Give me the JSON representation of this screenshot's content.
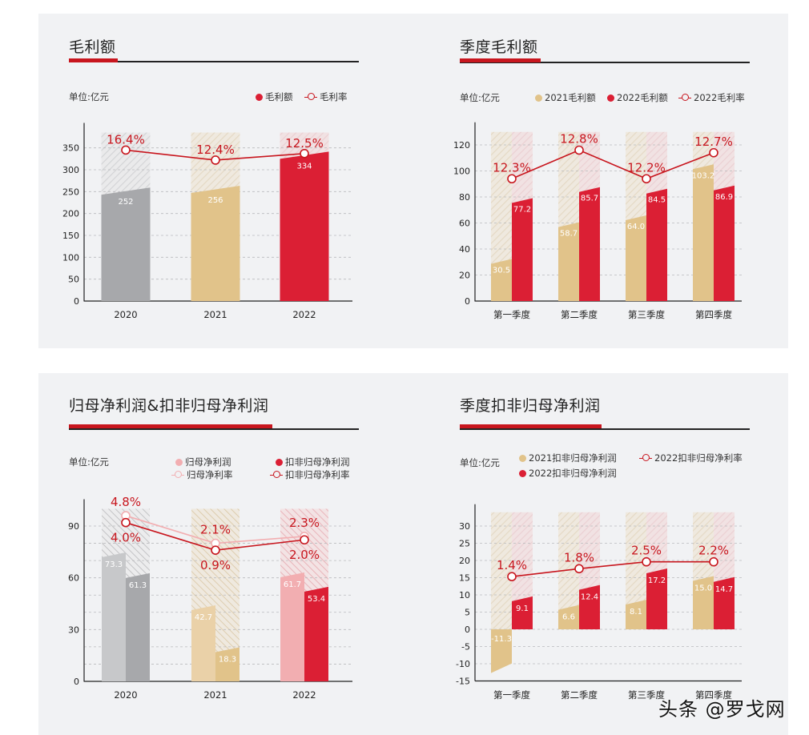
{
  "colors": {
    "red": "#db1f34",
    "gold": "#e1c38a",
    "gray": "#a7a8ab",
    "light_gray": "#c7c8ca",
    "pink": "#f2aeb1",
    "light_gold": "#ead1a8",
    "line_red": "#c8161e",
    "line_pink": "#f2aeb1",
    "panel_bg": "#f1f2f4"
  },
  "panels": {
    "gross_profit": {
      "title": "毛利额",
      "unit": "单位:亿元",
      "legend": [
        "毛利额",
        "毛利率"
      ]
    },
    "quarterly_gross_profit": {
      "title": "季度毛利额",
      "unit": "单位:亿元",
      "legend": [
        "2021毛利额",
        "2022毛利额",
        "2022毛利率"
      ]
    },
    "net_profit": {
      "title": "归母净利润&扣非归母净利润",
      "unit": "单位:亿元",
      "legend": [
        "归母净利润",
        "扣非归母净利润",
        "归母净利率",
        "扣非归母净利率"
      ]
    },
    "quarterly_adjusted_net_profit": {
      "title": "季度扣非归母净利润",
      "unit": "单位:亿元",
      "legend": [
        "2021扣非归母净利润",
        "2022扣非归母净利率",
        "2022扣非归母净利润"
      ]
    }
  },
  "watermark": "头条 @罗戈网",
  "chart_data": [
    {
      "type": "bar",
      "title": "毛利额",
      "unit": "亿元",
      "categories": [
        "2020",
        "2021",
        "2022"
      ],
      "series": [
        {
          "name": "毛利额",
          "values": [
            252,
            256,
            334
          ],
          "labels": [
            "252",
            "256",
            "334"
          ],
          "colors": [
            "#a7a8ab",
            "#e1c38a",
            "#db1f34"
          ]
        }
      ],
      "line_series": [
        {
          "name": "毛利率",
          "values": [
            16.4,
            12.4,
            12.5
          ],
          "labels": [
            "16.4%",
            "12.4%",
            "12.5%"
          ],
          "plot_y": [
            345,
            322,
            337
          ]
        }
      ],
      "yticks": [
        0,
        50,
        100,
        150,
        200,
        250,
        300,
        350
      ],
      "ylim": [
        0,
        385
      ],
      "grid": true,
      "legend_position": "top-right"
    },
    {
      "type": "bar",
      "title": "季度毛利额",
      "unit": "亿元",
      "categories": [
        "第一季度",
        "第二季度",
        "第三季度",
        "第四季度"
      ],
      "series": [
        {
          "name": "2021毛利额",
          "values": [
            30.5,
            58.7,
            64.0,
            103.2
          ],
          "labels": [
            "30.5",
            "58.7",
            "64.0",
            "103.2"
          ],
          "color": "#e1c38a"
        },
        {
          "name": "2022毛利额",
          "values": [
            77.2,
            85.7,
            84.5,
            86.9
          ],
          "labels": [
            "77.2",
            "85.7",
            "84.5",
            "86.9"
          ],
          "color": "#db1f34"
        }
      ],
      "line_series": [
        {
          "name": "2022毛利率",
          "values": [
            12.3,
            12.8,
            12.2,
            12.7
          ],
          "labels": [
            "12.3%",
            "12.8%",
            "12.2%",
            "12.7%"
          ],
          "plot_y": [
            94,
            116,
            94,
            114
          ]
        }
      ],
      "yticks": [
        0,
        20,
        40,
        60,
        80,
        100,
        120
      ],
      "ylim": [
        0,
        130
      ],
      "grid": true,
      "legend_position": "top"
    },
    {
      "type": "bar",
      "title": "归母净利润&扣非归母净利润",
      "unit": "亿元",
      "categories": [
        "2020",
        "2021",
        "2022"
      ],
      "series": [
        {
          "name": "归母净利润",
          "values": [
            73.3,
            42.7,
            61.7
          ],
          "labels": [
            "73.3",
            "42.7",
            "61.7"
          ],
          "colors": [
            "#c7c8ca",
            "#ead1a8",
            "#f2aeb1"
          ]
        },
        {
          "name": "扣非归母净利润",
          "values": [
            61.3,
            18.3,
            53.4
          ],
          "labels": [
            "61.3",
            "18.3",
            "53.4"
          ],
          "colors": [
            "#a7a8ab",
            "#e1c38a",
            "#db1f34"
          ]
        }
      ],
      "line_series": [
        {
          "name": "归母净利率",
          "values": [
            4.8,
            2.1,
            2.3
          ],
          "labels": [
            "4.8%",
            "2.1%",
            "2.3%"
          ],
          "plot_y": [
            96,
            80,
            84
          ]
        },
        {
          "name": "扣非归母净利率",
          "values": [
            4.0,
            0.9,
            2.0
          ],
          "labels": [
            "4.0%",
            "0.9%",
            "2.0%"
          ],
          "plot_y": [
            92,
            76,
            82
          ]
        }
      ],
      "yticks": [
        0,
        30,
        60,
        90
      ],
      "ylim": [
        0,
        100
      ],
      "grid": true,
      "legend_position": "top"
    },
    {
      "type": "bar",
      "title": "季度扣非归母净利润",
      "unit": "亿元",
      "categories": [
        "第一季度",
        "第二季度",
        "第三季度",
        "第四季度"
      ],
      "series": [
        {
          "name": "2021扣非归母净利润",
          "values": [
            -11.3,
            6.6,
            8.1,
            15.0
          ],
          "labels": [
            "-11.3",
            "6.6",
            "8.1",
            "15.0"
          ],
          "color": "#e1c38a"
        },
        {
          "name": "2022扣非归母净利润",
          "values": [
            9.1,
            12.4,
            17.2,
            14.7
          ],
          "labels": [
            "9.1",
            "12.4",
            "17.2",
            "14.7"
          ],
          "color": "#db1f34"
        }
      ],
      "line_series": [
        {
          "name": "2022扣非归母净利率",
          "values": [
            1.4,
            1.8,
            2.5,
            2.2
          ],
          "labels": [
            "1.4%",
            "1.8%",
            "2.5%",
            "2.2%"
          ],
          "plot_y": [
            15.3,
            17.6,
            19.6,
            19.6
          ]
        }
      ],
      "yticks": [
        -15,
        -10,
        -5,
        0,
        5,
        10,
        15,
        20,
        25,
        30
      ],
      "ylim": [
        -15,
        34
      ],
      "grid": true,
      "legend_position": "top"
    }
  ]
}
